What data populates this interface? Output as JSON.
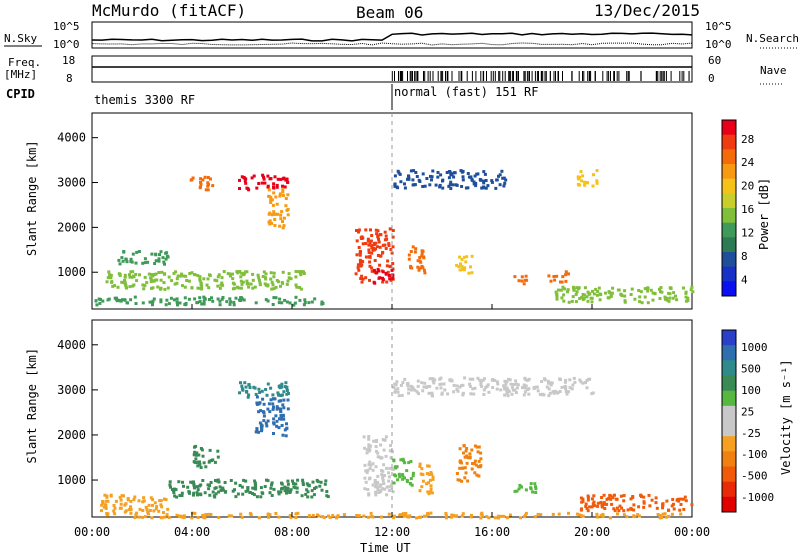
{
  "header": {
    "station": "McMurdo (fitACF)",
    "beam": "Beam 06",
    "date": "13/Dec/2015"
  },
  "aux": {
    "nsky_label": "N.Sky",
    "nsky_ticks": [
      "10^5",
      "10^0"
    ],
    "nsearch_label": "N.Search",
    "nsearch_ticks": [
      "10^5",
      "10^0"
    ],
    "freq_label": "Freq.",
    "freq_unit": "[MHz]",
    "freq_ticks": [
      "18",
      "8"
    ],
    "nave_label": "Nave",
    "nave_ticks": [
      "60",
      "0"
    ],
    "cpid_label": "CPID",
    "cpid_modes": [
      "themis 3300 RF",
      "normal (fast) 151 RF"
    ]
  },
  "colorbars": {
    "power": {
      "label": "Power [dB]",
      "ticks": [
        "28",
        "24",
        "20",
        "16",
        "12",
        "8",
        "4"
      ],
      "colors": [
        "#e8001a",
        "#f03a10",
        "#f56a0a",
        "#f79a12",
        "#f5c21a",
        "#c9cf2a",
        "#7fbf3a",
        "#3f9a5a",
        "#2d7a55",
        "#1f4f9a",
        "#1630c8",
        "#0a10f0"
      ]
    },
    "velocity": {
      "label": "Velocity [m s⁻¹]",
      "ticks": [
        "1000",
        "500",
        "100",
        "25",
        "-25",
        "-100",
        "-500",
        "-1000"
      ],
      "colors": [
        "#2a40c8",
        "#2f6fb0",
        "#2f8a8a",
        "#3a8a55",
        "#56b840",
        "#c8c8c8",
        "#c8c8c8",
        "#f5a020",
        "#f08010",
        "#f05a08",
        "#e82a08",
        "#e00000"
      ]
    }
  },
  "chart_data": [
    {
      "type": "heatmap",
      "title": "Power",
      "ylabel": "Slant Range [km]",
      "ylim": [
        180,
        4550
      ],
      "yticks": [
        "4000",
        "3000",
        "2000",
        "1000"
      ],
      "xticks": [
        "00:00",
        "04:00",
        "08:00",
        "12:00",
        "16:00",
        "20:00",
        "00:00"
      ],
      "blobs": [
        {
          "t0": 0.1,
          "t1": 9.5,
          "r0": 300,
          "r1": 480,
          "v": "#3f9a5a"
        },
        {
          "t0": 0.5,
          "t1": 8.5,
          "r0": 650,
          "r1": 1050,
          "v": "#7fbf3a"
        },
        {
          "t0": 1.0,
          "t1": 3.0,
          "r0": 1200,
          "r1": 1500,
          "v": "#3f9a5a"
        },
        {
          "t0": 5.8,
          "t1": 7.8,
          "r0": 2850,
          "r1": 3200,
          "v": "#e8001a"
        },
        {
          "t0": 3.8,
          "t1": 4.8,
          "r0": 2850,
          "r1": 3150,
          "v": "#f56a0a"
        },
        {
          "t0": 7.0,
          "t1": 7.8,
          "r0": 2000,
          "r1": 2900,
          "v": "#f79a12"
        },
        {
          "t0": 10.5,
          "t1": 12.0,
          "r0": 800,
          "r1": 2000,
          "v": "#f03a10"
        },
        {
          "t0": 11.2,
          "t1": 12.0,
          "r0": 700,
          "r1": 1100,
          "v": "#e8001a"
        },
        {
          "t0": 12.6,
          "t1": 13.3,
          "r0": 1000,
          "r1": 1600,
          "v": "#f56a0a"
        },
        {
          "t0": 14.5,
          "t1": 15.2,
          "r0": 1000,
          "r1": 1400,
          "v": "#f5c21a"
        },
        {
          "t0": 16.8,
          "t1": 17.4,
          "r0": 750,
          "r1": 950,
          "v": "#f56a0a"
        },
        {
          "t0": 18.2,
          "t1": 19.0,
          "r0": 800,
          "r1": 1050,
          "v": "#f56a0a"
        },
        {
          "t0": 19.3,
          "t1": 20.2,
          "r0": 2950,
          "r1": 3300,
          "v": "#f5c21a"
        },
        {
          "t0": 18.5,
          "t1": 24.0,
          "r0": 350,
          "r1": 700,
          "v": "#7fbf3a"
        },
        {
          "t0": 12.0,
          "t1": 16.5,
          "r0": 2900,
          "r1": 3300,
          "v": "#1f4f9a"
        }
      ]
    },
    {
      "type": "heatmap",
      "title": "Velocity",
      "ylabel": "Slant Range [km]",
      "ylim": [
        180,
        4550
      ],
      "yticks": [
        "4000",
        "3000",
        "2000",
        "1000"
      ],
      "xticks": [
        "00:00",
        "04:00",
        "08:00",
        "12:00",
        "16:00",
        "20:00",
        "00:00"
      ],
      "xlabel": "Time UT",
      "blobs": [
        {
          "t0": 0.1,
          "t1": 24.0,
          "r0": 190,
          "r1": 300,
          "v": "#f5a020"
        },
        {
          "t0": 0.3,
          "t1": 3.0,
          "r0": 300,
          "r1": 700,
          "v": "#f5a020"
        },
        {
          "t0": 3.0,
          "t1": 9.5,
          "r0": 650,
          "r1": 1050,
          "v": "#3a8a55"
        },
        {
          "t0": 5.8,
          "t1": 7.8,
          "r0": 2850,
          "r1": 3200,
          "v": "#2f8a8a"
        },
        {
          "t0": 6.5,
          "t1": 7.8,
          "r0": 2000,
          "r1": 2900,
          "v": "#2f6fb0"
        },
        {
          "t0": 4.0,
          "t1": 5.0,
          "r0": 1300,
          "r1": 1800,
          "v": "#3a8a55"
        },
        {
          "t0": 10.8,
          "t1": 12.0,
          "r0": 700,
          "r1": 2000,
          "v": "#c8c8c8"
        },
        {
          "t0": 12.0,
          "t1": 12.8,
          "r0": 900,
          "r1": 1500,
          "v": "#56b840"
        },
        {
          "t0": 13.0,
          "t1": 13.6,
          "r0": 700,
          "r1": 1400,
          "v": "#f5a020"
        },
        {
          "t0": 14.5,
          "t1": 15.5,
          "r0": 1000,
          "r1": 1800,
          "v": "#f08010"
        },
        {
          "t0": 16.8,
          "t1": 17.8,
          "r0": 750,
          "r1": 1000,
          "v": "#56b840"
        },
        {
          "t0": 19.5,
          "t1": 24.0,
          "r0": 350,
          "r1": 700,
          "v": "#f05a08"
        },
        {
          "t0": 12.0,
          "t1": 20.0,
          "r0": 2900,
          "r1": 3300,
          "v": "#c8c8c8"
        }
      ]
    }
  ]
}
